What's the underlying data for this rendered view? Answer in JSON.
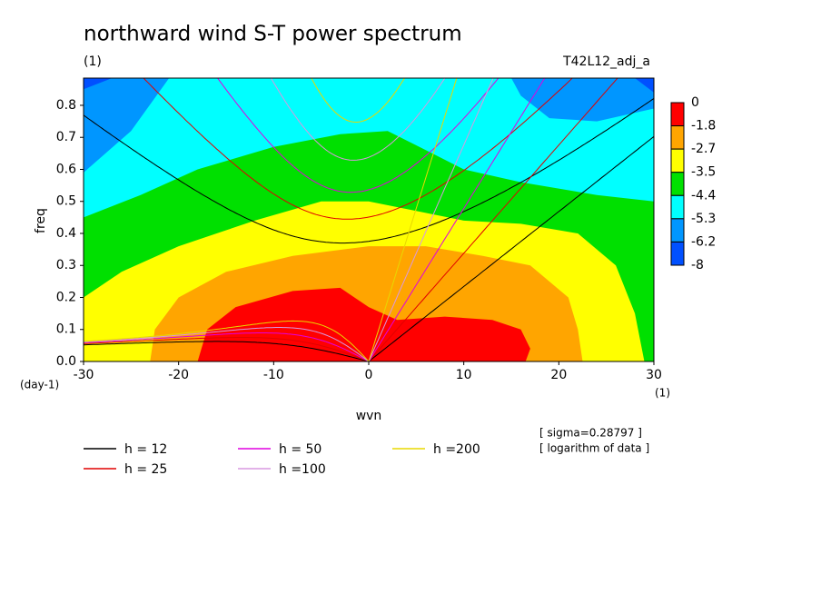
{
  "chart_data": {
    "type": "contour",
    "title": "northward wind S-T power spectrum",
    "subtitle": "(1)",
    "run_label": "T42L12_adj_a",
    "x_label": "wvn",
    "y_label": "freq",
    "x_unit": "(1)",
    "y_unit": "(day-1)",
    "notes": [
      "[ sigma=0.28797 ]",
      "[ logarithm of data ]"
    ],
    "xlim": [
      -30,
      30
    ],
    "ylim": [
      0,
      0.885
    ],
    "xticks": [
      -30,
      -20,
      -10,
      0,
      10,
      20,
      30
    ],
    "yticks": [
      {
        "value": 0,
        "label": "0.0"
      },
      0.1,
      0.2,
      0.3,
      0.4,
      0.5,
      0.6,
      0.7,
      0.8
    ],
    "colorbar": {
      "levels": [
        0,
        -1.8,
        -2.7,
        -3.5,
        -4.4,
        -5.3,
        -6.2,
        -8
      ],
      "colors": [
        "#ff0000",
        "#ffa500",
        "#ffff00",
        "#00e000",
        "#00ffff",
        "#0096ff",
        "#0050ff"
      ]
    },
    "regions": [
      {
        "min": -6.2,
        "x": [
          -30,
          30,
          30,
          28,
          -27,
          -30
        ],
        "y": [
          0,
          0,
          0.84,
          0.885,
          0.885,
          0.85
        ]
      },
      {
        "min": -5.3,
        "x": [
          -30,
          30,
          30,
          24,
          19,
          16,
          15,
          -21,
          -25,
          -30
        ],
        "y": [
          0,
          0,
          0.79,
          0.75,
          0.76,
          0.83,
          0.885,
          0.885,
          0.72,
          0.59
        ]
      },
      {
        "min": -4.4,
        "x": [
          -30,
          -24,
          -18,
          -10,
          -3,
          2,
          6,
          10,
          16,
          24,
          30,
          30,
          -30
        ],
        "y": [
          0.45,
          0.52,
          0.6,
          0.67,
          0.71,
          0.72,
          0.66,
          0.6,
          0.56,
          0.52,
          0.5,
          0,
          0
        ]
      },
      {
        "min": -3.5,
        "x": [
          -30,
          -26,
          -20,
          -12,
          -5,
          0,
          5,
          10,
          16,
          22,
          26,
          28,
          29,
          -30
        ],
        "y": [
          0.2,
          0.28,
          0.36,
          0.44,
          0.5,
          0.5,
          0.47,
          0.44,
          0.43,
          0.4,
          0.3,
          0.15,
          0,
          0
        ]
      },
      {
        "min": -2.7,
        "x": [
          -23,
          -22.5,
          -20,
          -15,
          -8,
          0,
          6,
          12,
          17,
          21,
          22,
          22.5
        ],
        "y": [
          0,
          0.1,
          0.2,
          0.28,
          0.33,
          0.36,
          0.36,
          0.33,
          0.3,
          0.2,
          0.1,
          0
        ]
      },
      {
        "min": -1.8,
        "x": [
          -18,
          -17,
          -14,
          -8,
          -3,
          0,
          3,
          8,
          13,
          16,
          17,
          16.5
        ],
        "y": [
          0,
          0.1,
          0.17,
          0.22,
          0.23,
          0.17,
          0.13,
          0.14,
          0.13,
          0.1,
          0.04,
          0
        ]
      }
    ],
    "series": [
      {
        "name": "h = 12",
        "h": 12,
        "color": "#000000"
      },
      {
        "name": "h = 25",
        "h": 25,
        "color": "#e00000"
      },
      {
        "name": "h = 50",
        "h": 50,
        "color": "#e000e0"
      },
      {
        "name": "h =100",
        "h": 100,
        "color": "#d898e0"
      },
      {
        "name": "h =200",
        "h": 200,
        "color": "#e8d800"
      }
    ]
  }
}
